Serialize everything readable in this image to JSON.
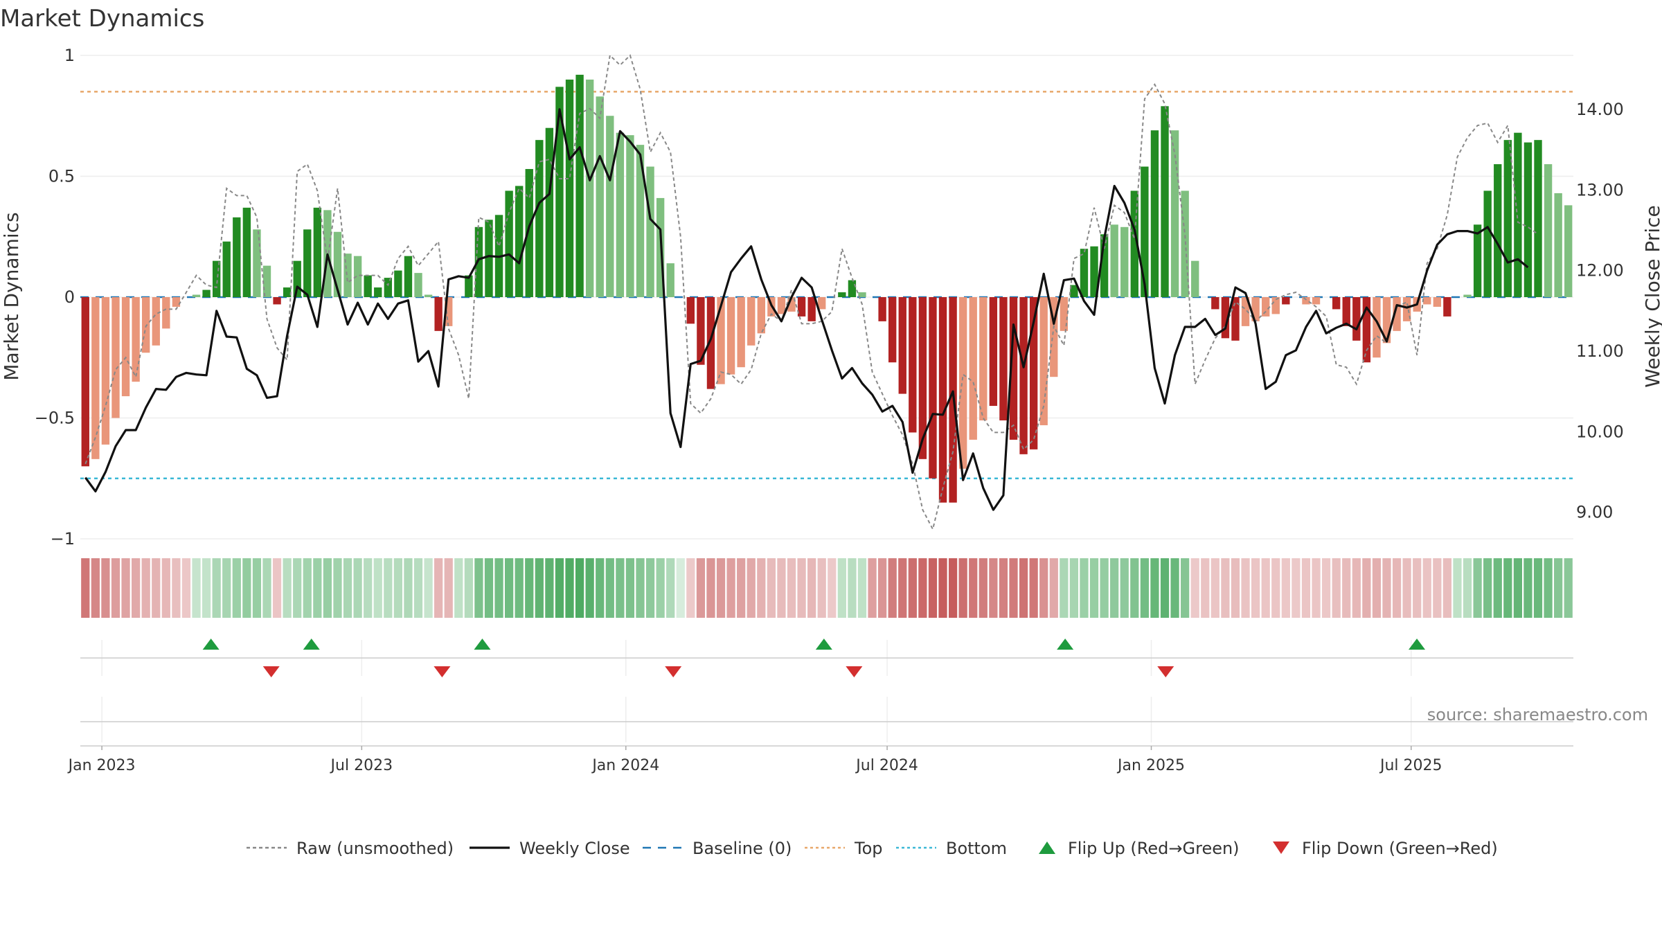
{
  "chart_data": {
    "type": "bar",
    "title": "Market Dynamics",
    "ylabel_left": "Market Dynamics",
    "ylabel_right": "Weekly Close Price",
    "source": "source: sharemaestro.com",
    "x_ticks": [
      "Jan 2023",
      "Jul 2023",
      "Jan 2024",
      "Jul 2024",
      "Jan 2025",
      "Jul 2025"
    ],
    "x_tick_dates": [
      "2023-01-01",
      "2023-07-01",
      "2024-01-01",
      "2024-07-01",
      "2025-01-01",
      "2025-07-01"
    ],
    "y_left_ticks": [
      "1",
      "0.5",
      "0",
      "−0.5",
      "−1"
    ],
    "y_left_tick_values": [
      1,
      0.5,
      0,
      -0.5,
      -1
    ],
    "y_right_ticks": [
      "14.00",
      "13.00",
      "12.00",
      "11.00",
      "10.00",
      "9.00"
    ],
    "y_right_tick_values": [
      14,
      13,
      12,
      11,
      10,
      9
    ],
    "ylim_left": [
      -1,
      1
    ],
    "ylim_right": [
      8.67,
      14.67
    ],
    "x_range": [
      "2022-12-17",
      "2025-10-22"
    ],
    "top_level": 0.85,
    "bottom_level": -0.75,
    "colors": {
      "strong_green": "#228B22",
      "light_green": "#7FBF7F",
      "strong_red": "#B22222",
      "light_red": "#E9967A",
      "price": "#111111",
      "raw": "#888888",
      "baseline": "#1F77B4",
      "top": "#E8A86A",
      "bottom": "#3BB8D6",
      "flip_up": "#1E9B3E",
      "flip_down": "#D32F2F"
    },
    "series": {
      "dynamics": [
        -0.7,
        -0.67,
        -0.61,
        -0.5,
        -0.41,
        -0.35,
        -0.23,
        -0.2,
        -0.13,
        -0.04,
        0.0,
        0.01,
        0.03,
        0.15,
        0.23,
        0.33,
        0.37,
        0.28,
        0.13,
        -0.03,
        0.04,
        0.15,
        0.28,
        0.37,
        0.36,
        0.27,
        0.18,
        0.17,
        0.09,
        0.04,
        0.08,
        0.11,
        0.17,
        0.1,
        0.01,
        -0.14,
        -0.12,
        0.0,
        0.09,
        0.29,
        0.32,
        0.34,
        0.44,
        0.46,
        0.53,
        0.65,
        0.7,
        0.87,
        0.9,
        0.92,
        0.9,
        0.83,
        0.75,
        0.68,
        0.67,
        0.63,
        0.54,
        0.41,
        0.14,
        0.0,
        -0.11,
        -0.28,
        -0.38,
        -0.36,
        -0.32,
        -0.29,
        -0.2,
        -0.15,
        -0.08,
        -0.07,
        -0.06,
        -0.08,
        -0.1,
        -0.05,
        0.0,
        0.02,
        0.07,
        0.02,
        0.0,
        -0.1,
        -0.27,
        -0.4,
        -0.56,
        -0.67,
        -0.75,
        -0.85,
        -0.85,
        -0.71,
        -0.59,
        -0.51,
        -0.45,
        -0.51,
        -0.59,
        -0.65,
        -0.63,
        -0.53,
        -0.33,
        -0.14,
        0.05,
        0.2,
        0.21,
        0.26,
        0.3,
        0.29,
        0.44,
        0.54,
        0.69,
        0.79,
        0.69,
        0.44,
        0.15,
        0.0,
        -0.05,
        -0.17,
        -0.18,
        -0.12,
        -0.1,
        -0.08,
        -0.07,
        -0.03,
        0.0,
        -0.03,
        -0.03,
        0.0,
        -0.05,
        -0.12,
        -0.18,
        -0.27,
        -0.25,
        -0.19,
        -0.14,
        -0.1,
        -0.06,
        -0.03,
        -0.04,
        -0.08,
        0.0,
        0.01,
        0.3,
        0.44,
        0.55,
        0.65,
        0.68,
        0.64,
        0.65,
        0.55,
        0.43,
        0.38
      ],
      "strong": [
        1,
        0,
        0,
        0,
        0,
        0,
        0,
        0,
        0,
        0,
        0,
        0,
        1,
        1,
        1,
        1,
        1,
        0,
        0,
        1,
        1,
        1,
        1,
        1,
        0,
        0,
        0,
        0,
        1,
        1,
        1,
        1,
        1,
        0,
        0,
        1,
        0,
        0,
        1,
        1,
        1,
        1,
        1,
        1,
        1,
        1,
        1,
        1,
        1,
        1,
        0,
        0,
        0,
        0,
        0,
        0,
        0,
        0,
        0,
        0,
        1,
        1,
        1,
        0,
        0,
        0,
        0,
        0,
        0,
        0,
        0,
        1,
        1,
        0,
        0,
        1,
        1,
        0,
        0,
        1,
        1,
        1,
        1,
        1,
        1,
        1,
        1,
        0,
        0,
        0,
        1,
        1,
        1,
        1,
        1,
        0,
        0,
        0,
        1,
        1,
        1,
        1,
        0,
        0,
        1,
        1,
        1,
        1,
        0,
        0,
        0,
        0,
        1,
        1,
        1,
        0,
        0,
        0,
        0,
        1,
        0,
        0,
        0,
        0,
        1,
        1,
        1,
        1,
        0,
        0,
        0,
        0,
        0,
        0,
        0,
        1,
        0,
        0,
        1,
        1,
        1,
        1,
        1,
        1,
        1,
        0,
        0,
        0
      ],
      "raw": [
        -0.69,
        -0.58,
        -0.45,
        -0.3,
        -0.25,
        -0.33,
        -0.12,
        -0.07,
        -0.05,
        -0.05,
        0.02,
        0.09,
        0.05,
        0.04,
        0.45,
        0.42,
        0.42,
        0.33,
        -0.09,
        -0.21,
        -0.26,
        0.52,
        0.55,
        0.44,
        0.15,
        0.45,
        0.06,
        0.09,
        0.09,
        0.09,
        0.05,
        0.16,
        0.21,
        0.13,
        0.18,
        0.23,
        -0.13,
        -0.24,
        -0.42,
        0.33,
        0.31,
        0.21,
        0.35,
        0.45,
        0.41,
        0.56,
        0.57,
        0.49,
        0.49,
        0.76,
        0.78,
        0.74,
        1.0,
        0.96,
        1.0,
        0.86,
        0.6,
        0.68,
        0.6,
        0.25,
        -0.44,
        -0.48,
        -0.42,
        -0.31,
        -0.32,
        -0.36,
        -0.3,
        -0.15,
        -0.07,
        -0.1,
        0.03,
        -0.11,
        -0.11,
        -0.1,
        -0.06,
        0.2,
        0.08,
        -0.03,
        -0.31,
        -0.4,
        -0.49,
        -0.57,
        -0.69,
        -0.88,
        -0.96,
        -0.79,
        -0.64,
        -0.32,
        -0.35,
        -0.5,
        -0.56,
        -0.56,
        -0.53,
        -0.63,
        -0.59,
        -0.45,
        -0.12,
        -0.2,
        0.16,
        0.18,
        0.37,
        0.2,
        0.38,
        0.35,
        0.24,
        0.82,
        0.88,
        0.8,
        0.59,
        0.26,
        -0.36,
        -0.26,
        -0.17,
        -0.12,
        -0.02,
        -0.05,
        -0.1,
        -0.06,
        -0.01,
        0.01,
        0.02,
        -0.01,
        -0.04,
        -0.08,
        -0.28,
        -0.29,
        -0.36,
        -0.22,
        -0.16,
        -0.19,
        -0.04,
        -0.02,
        -0.24,
        0.14,
        0.2,
        0.34,
        0.58,
        0.66,
        0.71,
        0.72,
        0.64,
        0.71,
        0.31,
        0.29,
        0.26
      ],
      "price": [
        9.43,
        9.26,
        9.5,
        9.82,
        10.02,
        10.02,
        10.3,
        10.53,
        10.52,
        10.68,
        10.73,
        10.71,
        10.7,
        11.5,
        11.18,
        11.17,
        10.78,
        10.7,
        10.42,
        10.44,
        11.19,
        11.8,
        11.7,
        11.3,
        12.2,
        11.76,
        11.33,
        11.6,
        11.33,
        11.59,
        11.4,
        11.59,
        11.63,
        10.87,
        11.0,
        10.56,
        11.89,
        11.93,
        11.91,
        12.14,
        12.18,
        12.17,
        12.2,
        12.09,
        12.55,
        12.84,
        12.95,
        14.0,
        13.38,
        13.53,
        13.12,
        13.42,
        13.12,
        13.73,
        13.6,
        13.44,
        12.64,
        12.51,
        10.23,
        9.81,
        10.84,
        10.88,
        11.15,
        11.56,
        11.98,
        12.15,
        12.3,
        11.89,
        11.57,
        11.37,
        11.67,
        11.91,
        11.79,
        11.39,
        11.01,
        10.66,
        10.79,
        10.6,
        10.46,
        10.25,
        10.32,
        10.12,
        9.49,
        9.91,
        10.22,
        10.21,
        10.5,
        9.4,
        9.73,
        9.3,
        9.03,
        9.21,
        11.33,
        10.8,
        11.36,
        11.96,
        11.34,
        11.88,
        11.9,
        11.62,
        11.45,
        12.4,
        13.05,
        12.84,
        12.51,
        11.83,
        10.79,
        10.35,
        10.95,
        11.3,
        11.3,
        11.4,
        11.2,
        11.28,
        11.79,
        11.72,
        11.34,
        10.53,
        10.62,
        10.95,
        11.01,
        11.3,
        11.5,
        11.22,
        11.29,
        11.34,
        11.27,
        11.54,
        11.37,
        11.12,
        11.57,
        11.54,
        11.58,
        12.0,
        12.32,
        12.45,
        12.49,
        12.49,
        12.46,
        12.54,
        12.33,
        12.1,
        12.14,
        12.04
      ],
      "flip_up": [
        "2023-03-18",
        "2023-05-27",
        "2023-09-23",
        "2024-05-18",
        "2024-11-02",
        "2025-07-05"
      ],
      "flip_down": [
        "2023-04-29",
        "2023-08-26",
        "2024-02-03",
        "2024-06-08",
        "2025-01-11"
      ]
    },
    "strip_levels": [
      -0.66,
      -0.56,
      -0.51,
      -0.42,
      -0.37,
      -0.34,
      -0.28,
      -0.26,
      -0.24,
      -0.18,
      -0.13,
      0.11,
      0.12,
      0.26,
      0.3,
      0.36,
      0.42,
      0.38,
      0.26,
      -0.14,
      0.18,
      0.26,
      0.32,
      0.36,
      0.39,
      0.34,
      0.28,
      0.27,
      0.2,
      0.14,
      0.18,
      0.22,
      0.25,
      0.2,
      0.1,
      -0.25,
      -0.25,
      0.15,
      0.22,
      0.55,
      0.6,
      0.6,
      0.62,
      0.63,
      0.68,
      0.72,
      0.74,
      0.8,
      0.82,
      0.83,
      0.76,
      0.66,
      0.6,
      0.56,
      0.55,
      0.5,
      0.44,
      0.36,
      0.24,
      0.0,
      -0.12,
      -0.44,
      -0.46,
      -0.44,
      -0.4,
      -0.38,
      -0.33,
      -0.28,
      -0.22,
      -0.21,
      -0.2,
      -0.22,
      -0.24,
      -0.19,
      -0.12,
      0.14,
      0.18,
      0.14,
      -0.4,
      -0.46,
      -0.62,
      -0.68,
      -0.72,
      -0.76,
      -0.8,
      -0.84,
      -0.84,
      -0.72,
      -0.66,
      -0.62,
      -0.56,
      -0.6,
      -0.64,
      -0.7,
      -0.66,
      -0.5,
      -0.34,
      0.26,
      0.3,
      0.36,
      0.38,
      0.4,
      0.44,
      0.44,
      0.52,
      0.6,
      0.68,
      0.74,
      0.66,
      0.5,
      -0.12,
      -0.16,
      -0.14,
      -0.18,
      -0.2,
      -0.16,
      -0.15,
      -0.14,
      -0.14,
      -0.13,
      -0.12,
      -0.14,
      -0.14,
      -0.13,
      -0.18,
      -0.22,
      -0.24,
      -0.3,
      -0.29,
      -0.26,
      -0.24,
      -0.2,
      -0.18,
      -0.16,
      -0.17,
      -0.2,
      0.14,
      0.18,
      0.46,
      0.58,
      0.64,
      0.68,
      0.7,
      0.66,
      0.67,
      0.6,
      0.5,
      0.46
    ],
    "legend": [
      {
        "label": "Raw (unsmoothed)",
        "style": "dashed-line",
        "color": "#888888"
      },
      {
        "label": "Weekly Close",
        "style": "solid-line",
        "color": "#111111"
      },
      {
        "label": "Baseline (0)",
        "style": "dashed-line",
        "color": "#1F77B4"
      },
      {
        "label": "Top",
        "style": "dotted-line",
        "color": "#E8A86A"
      },
      {
        "label": "Bottom",
        "style": "dotted-line",
        "color": "#3BB8D6"
      },
      {
        "label": "Flip Up (Red→Green)",
        "style": "triangle-up",
        "color": "#1E9B3E"
      },
      {
        "label": "Flip Down (Green→Red)",
        "style": "triangle-down",
        "color": "#D32F2F"
      }
    ],
    "legend_position": "bottom-center",
    "grid": true
  }
}
